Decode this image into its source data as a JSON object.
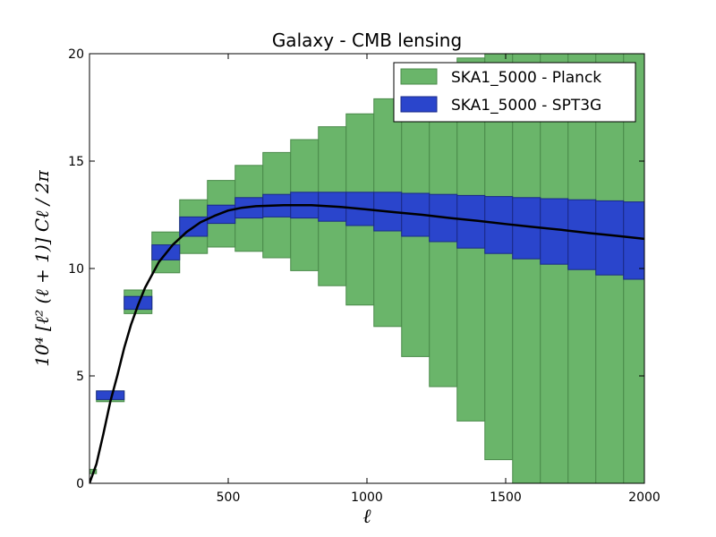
{
  "chart_data": {
    "type": "bar",
    "title": "Galaxy - CMB lensing",
    "xlabel": "ℓ",
    "ylabel": "10⁴ [ℓ² (ℓ + 1)] Cℓ / 2π",
    "xlim": [
      0,
      2000
    ],
    "ylim": [
      0,
      20
    ],
    "xticks": [
      500,
      1000,
      1500,
      2000
    ],
    "yticks": [
      0,
      5,
      10,
      15,
      20
    ],
    "legend_position": "top-right",
    "series": [
      {
        "name": "SKA1_5000 - Planck",
        "color": "#6ab56a",
        "edge": "#4a8a4a",
        "boxes": [
          {
            "x0": 0,
            "x1": 25,
            "y0": 0.45,
            "y1": 0.65
          },
          {
            "x0": 25,
            "x1": 125,
            "y0": 3.8,
            "y1": 4.3
          },
          {
            "x0": 125,
            "x1": 225,
            "y0": 7.9,
            "y1": 9.0
          },
          {
            "x0": 225,
            "x1": 325,
            "y0": 9.8,
            "y1": 11.7
          },
          {
            "x0": 325,
            "x1": 425,
            "y0": 10.7,
            "y1": 13.2
          },
          {
            "x0": 425,
            "x1": 525,
            "y0": 11.0,
            "y1": 14.1
          },
          {
            "x0": 525,
            "x1": 625,
            "y0": 10.8,
            "y1": 14.8
          },
          {
            "x0": 625,
            "x1": 725,
            "y0": 10.5,
            "y1": 15.4
          },
          {
            "x0": 725,
            "x1": 825,
            "y0": 9.9,
            "y1": 16.0
          },
          {
            "x0": 825,
            "x1": 925,
            "y0": 9.2,
            "y1": 16.6
          },
          {
            "x0": 925,
            "x1": 1025,
            "y0": 8.3,
            "y1": 17.2
          },
          {
            "x0": 1025,
            "x1": 1125,
            "y0": 7.3,
            "y1": 17.9
          },
          {
            "x0": 1125,
            "x1": 1225,
            "y0": 5.9,
            "y1": 18.5
          },
          {
            "x0": 1225,
            "x1": 1325,
            "y0": 4.5,
            "y1": 19.2
          },
          {
            "x0": 1325,
            "x1": 1425,
            "y0": 2.9,
            "y1": 19.8
          },
          {
            "x0": 1425,
            "x1": 1525,
            "y0": 1.1,
            "y1": 20.0
          },
          {
            "x0": 1525,
            "x1": 1625,
            "y0": 0,
            "y1": 20.0
          },
          {
            "x0": 1625,
            "x1": 1725,
            "y0": 0,
            "y1": 20.0
          },
          {
            "x0": 1725,
            "x1": 1825,
            "y0": 0,
            "y1": 20.0
          },
          {
            "x0": 1825,
            "x1": 1925,
            "y0": 0,
            "y1": 20.0
          },
          {
            "x0": 1925,
            "x1": 2000,
            "y0": 0,
            "y1": 20.0
          }
        ]
      },
      {
        "name": "SKA1_5000 - SPT3G",
        "color": "#2a45cc",
        "edge": "#1a2a88",
        "boxes": [
          {
            "x0": 25,
            "x1": 125,
            "y0": 3.9,
            "y1": 4.3
          },
          {
            "x0": 125,
            "x1": 225,
            "y0": 8.1,
            "y1": 8.7
          },
          {
            "x0": 225,
            "x1": 325,
            "y0": 10.4,
            "y1": 11.1
          },
          {
            "x0": 325,
            "x1": 425,
            "y0": 11.5,
            "y1": 12.4
          },
          {
            "x0": 425,
            "x1": 525,
            "y0": 12.1,
            "y1": 12.95
          },
          {
            "x0": 525,
            "x1": 625,
            "y0": 12.35,
            "y1": 13.3
          },
          {
            "x0": 625,
            "x1": 725,
            "y0": 12.4,
            "y1": 13.45
          },
          {
            "x0": 725,
            "x1": 825,
            "y0": 12.35,
            "y1": 13.55
          },
          {
            "x0": 825,
            "x1": 925,
            "y0": 12.2,
            "y1": 13.55
          },
          {
            "x0": 925,
            "x1": 1025,
            "y0": 12.0,
            "y1": 13.55
          },
          {
            "x0": 1025,
            "x1": 1125,
            "y0": 11.75,
            "y1": 13.55
          },
          {
            "x0": 1125,
            "x1": 1225,
            "y0": 11.5,
            "y1": 13.5
          },
          {
            "x0": 1225,
            "x1": 1325,
            "y0": 11.25,
            "y1": 13.45
          },
          {
            "x0": 1325,
            "x1": 1425,
            "y0": 10.95,
            "y1": 13.4
          },
          {
            "x0": 1425,
            "x1": 1525,
            "y0": 10.7,
            "y1": 13.35
          },
          {
            "x0": 1525,
            "x1": 1625,
            "y0": 10.45,
            "y1": 13.3
          },
          {
            "x0": 1625,
            "x1": 1725,
            "y0": 10.2,
            "y1": 13.25
          },
          {
            "x0": 1725,
            "x1": 1825,
            "y0": 9.95,
            "y1": 13.2
          },
          {
            "x0": 1825,
            "x1": 1925,
            "y0": 9.7,
            "y1": 13.15
          },
          {
            "x0": 1925,
            "x1": 2000,
            "y0": 9.5,
            "y1": 13.1
          }
        ]
      }
    ],
    "theory_curve": {
      "name": "theory",
      "color": "#000000",
      "x": [
        0,
        25,
        50,
        75,
        100,
        125,
        150,
        175,
        200,
        250,
        300,
        350,
        400,
        450,
        500,
        550,
        600,
        700,
        800,
        900,
        1000,
        1100,
        1200,
        1300,
        1400,
        1500,
        1600,
        1700,
        1800,
        1900,
        2000
      ],
      "y": [
        0,
        0.9,
        2.3,
        3.8,
        5.0,
        6.3,
        7.4,
        8.3,
        9.1,
        10.3,
        11.1,
        11.7,
        12.15,
        12.45,
        12.7,
        12.83,
        12.9,
        12.95,
        12.95,
        12.87,
        12.75,
        12.62,
        12.5,
        12.35,
        12.22,
        12.07,
        11.93,
        11.8,
        11.65,
        11.52,
        11.38
      ]
    }
  }
}
